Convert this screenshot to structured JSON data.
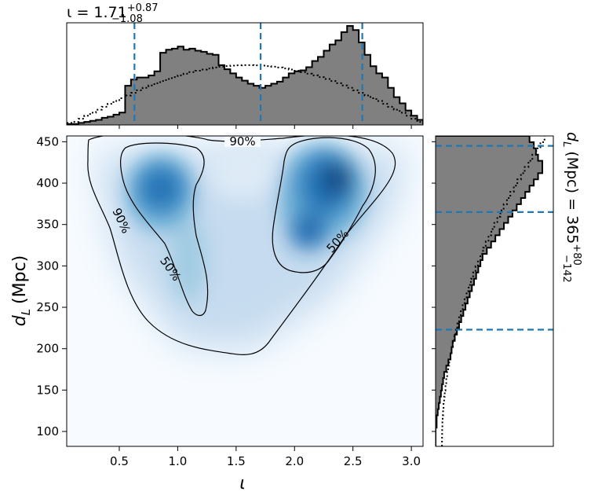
{
  "chart_data": {
    "type": "corner",
    "parameters": {
      "x": "ι",
      "y_base": "d",
      "y_sub": "L",
      "y_unit": "(Mpc)"
    },
    "x_summary": {
      "prefix": "ι = 1.71",
      "sup": "+0.87",
      "sub": "−1.08",
      "median": 1.71,
      "plus": 0.87,
      "minus": 1.08
    },
    "y_summary": {
      "prefix": "(Mpc) = 365",
      "sup": "+80",
      "sub": "−142",
      "median": 365,
      "plus": 80,
      "minus": 142
    },
    "main": {
      "xlim": [
        0.05,
        3.1
      ],
      "ylim": [
        82,
        457
      ],
      "xticks": [
        0.5,
        1.0,
        1.5,
        2.0,
        2.5,
        3.0
      ],
      "xtick_labels": [
        "0.5",
        "1.0",
        "1.5",
        "2.0",
        "2.5",
        "3.0"
      ],
      "yticks": [
        100,
        150,
        200,
        250,
        300,
        350,
        400,
        450
      ],
      "ytick_labels": [
        "100",
        "150",
        "200",
        "250",
        "300",
        "350",
        "400",
        "450"
      ],
      "contour_labels": [
        "90%",
        "90%",
        "50%",
        "50%"
      ],
      "modes": [
        {
          "x": 0.9,
          "y": 390
        },
        {
          "x": 2.3,
          "y": 395
        }
      ]
    },
    "top_hist": {
      "quantiles": [
        0.63,
        1.71,
        2.58
      ],
      "bins_edges_start": 0.05,
      "bin_width": 0.05,
      "posterior": [
        1,
        1,
        2,
        3,
        4,
        5,
        7,
        8,
        10,
        12,
        38,
        44,
        46,
        46,
        48,
        52,
        70,
        73,
        74,
        76,
        73,
        74,
        72,
        71,
        69,
        68,
        58,
        54,
        50,
        46,
        43,
        40,
        38,
        36,
        38,
        40,
        42,
        46,
        50,
        52,
        53,
        56,
        62,
        66,
        72,
        78,
        82,
        90,
        96,
        92,
        80,
        68,
        57,
        50,
        46,
        36,
        27,
        21,
        14,
        9,
        5
      ]
    },
    "right_hist": {
      "quantiles": [
        223,
        365,
        445
      ],
      "bins_edges_start": 82,
      "bin_width": 7.5,
      "posterior": [
        0,
        0,
        0,
        1,
        1,
        2,
        3,
        4,
        5,
        6,
        7,
        8,
        10,
        12,
        14,
        15,
        16,
        18,
        20,
        22,
        24,
        26,
        28,
        30,
        32,
        34,
        36,
        38,
        40,
        42,
        44,
        48,
        52,
        56,
        60,
        64,
        68,
        72,
        76,
        80,
        84,
        88,
        92,
        96,
        100,
        100,
        96,
        94,
        92,
        88
      ]
    },
    "colors": {
      "hist_fill": "#808080",
      "quantile_line": "#1f77b4",
      "density_high": "#08306b",
      "density_mid": "#4292c6",
      "density_low": "#deebf7"
    }
  }
}
